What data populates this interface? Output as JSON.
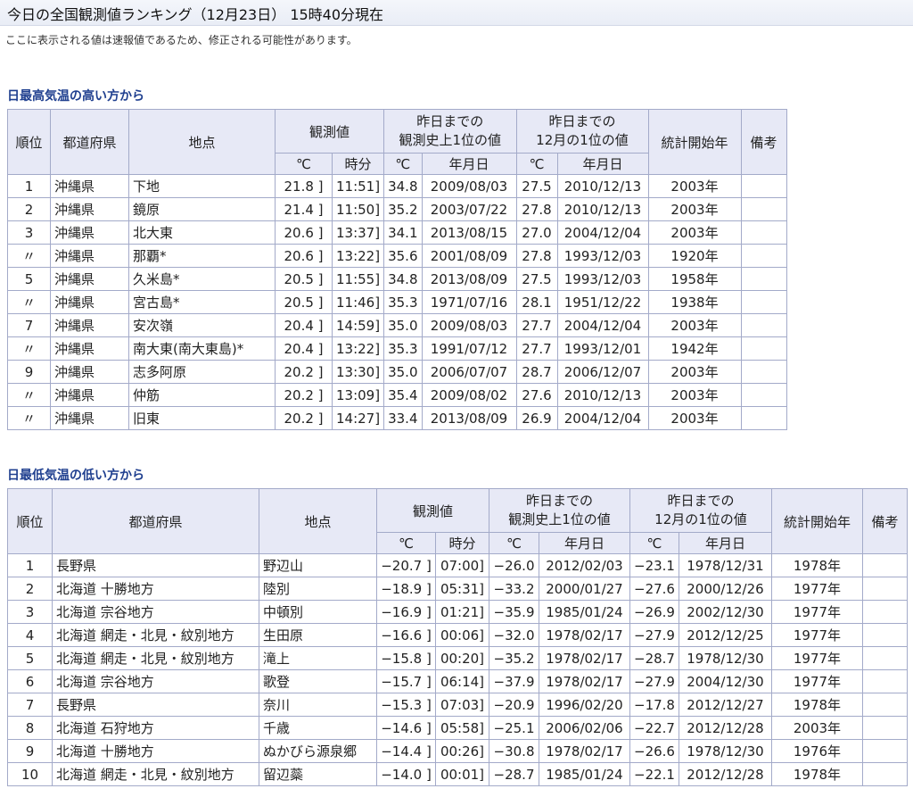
{
  "header": {
    "title": "今日の全国観測値ランキング（12月23日） 15時40分現在",
    "note": "ここに表示される値は速報値であるため、修正される可能性があります。"
  },
  "tables": [
    {
      "caption": "日最高気温の高い方から",
      "head": [
        "順位",
        "都道府県",
        "地点",
        "観測値",
        [
          "昨日までの",
          "観測史上1位の値"
        ],
        [
          "昨日までの",
          "12月の1位の値"
        ],
        "統計開始年",
        "備考"
      ],
      "subhead": [
        "℃",
        "時分",
        "℃",
        "年月日",
        "℃",
        "年月日"
      ],
      "rows": [
        [
          "1",
          "沖縄県",
          "下地",
          "21.8 ]",
          "11:51]",
          "34.8",
          "2009/08/03",
          "27.5",
          "2010/12/13",
          "2003年"
        ],
        [
          "2",
          "沖縄県",
          "鏡原",
          "21.4 ]",
          "11:50]",
          "35.2",
          "2003/07/22",
          "27.8",
          "2010/12/13",
          "2003年"
        ],
        [
          "3",
          "沖縄県",
          "北大東",
          "20.6 ]",
          "13:37]",
          "34.1",
          "2013/08/15",
          "27.0",
          "2004/12/04",
          "2003年"
        ],
        [
          "〃",
          "沖縄県",
          "那覇*",
          "20.6 ]",
          "13:22]",
          "35.6",
          "2001/08/09",
          "27.8",
          "1993/12/03",
          "1920年"
        ],
        [
          "5",
          "沖縄県",
          "久米島*",
          "20.5 ]",
          "11:55]",
          "34.8",
          "2013/08/09",
          "27.5",
          "1993/12/03",
          "1958年"
        ],
        [
          "〃",
          "沖縄県",
          "宮古島*",
          "20.5 ]",
          "11:46]",
          "35.3",
          "1971/07/16",
          "28.1",
          "1951/12/22",
          "1938年"
        ],
        [
          "7",
          "沖縄県",
          "安次嶺",
          "20.4 ]",
          "14:59]",
          "35.0",
          "2009/08/03",
          "27.7",
          "2004/12/04",
          "2003年"
        ],
        [
          "〃",
          "沖縄県",
          "南大東(南大東島)*",
          "20.4 ]",
          "13:22]",
          "35.3",
          "1991/07/12",
          "27.7",
          "1993/12/01",
          "1942年"
        ],
        [
          "9",
          "沖縄県",
          "志多阿原",
          "20.2 ]",
          "13:30]",
          "35.0",
          "2006/07/07",
          "28.7",
          "2006/12/07",
          "2003年"
        ],
        [
          "〃",
          "沖縄県",
          "仲筋",
          "20.2 ]",
          "13:09]",
          "35.4",
          "2009/08/02",
          "27.6",
          "2010/12/13",
          "2003年"
        ],
        [
          "〃",
          "沖縄県",
          "旧東",
          "20.2 ]",
          "14:27]",
          "33.4",
          "2013/08/09",
          "26.9",
          "2004/12/04",
          "2003年"
        ]
      ]
    },
    {
      "caption": "日最低気温の低い方から",
      "head": [
        "順位",
        "都道府県",
        "地点",
        "観測値",
        [
          "昨日までの",
          "観測史上1位の値"
        ],
        [
          "昨日までの",
          "12月の1位の値"
        ],
        "統計開始年",
        "備考"
      ],
      "subhead": [
        "℃",
        "時分",
        "℃",
        "年月日",
        "℃",
        "年月日"
      ],
      "rows": [
        [
          "1",
          "長野県",
          "野辺山",
          "−20.7 ]",
          "07:00]",
          "−26.0",
          "2012/02/03",
          "−23.1",
          "1978/12/31",
          "1978年"
        ],
        [
          "2",
          "北海道 十勝地方",
          "陸別",
          "−18.9 ]",
          "05:31]",
          "−33.2",
          "2000/01/27",
          "−27.6",
          "2000/12/26",
          "1977年"
        ],
        [
          "3",
          "北海道 宗谷地方",
          "中頓別",
          "−16.9 ]",
          "01:21]",
          "−35.9",
          "1985/01/24",
          "−26.9",
          "2002/12/30",
          "1977年"
        ],
        [
          "4",
          "北海道 網走・北見・紋別地方",
          "生田原",
          "−16.6 ]",
          "00:06]",
          "−32.0",
          "1978/02/17",
          "−27.9",
          "2012/12/25",
          "1977年"
        ],
        [
          "5",
          "北海道 網走・北見・紋別地方",
          "滝上",
          "−15.8 ]",
          "00:20]",
          "−35.2",
          "1978/02/17",
          "−28.7",
          "1978/12/30",
          "1977年"
        ],
        [
          "6",
          "北海道 宗谷地方",
          "歌登",
          "−15.7 ]",
          "06:14]",
          "−37.9",
          "1978/02/17",
          "−27.9",
          "2004/12/30",
          "1977年"
        ],
        [
          "7",
          "長野県",
          "奈川",
          "−15.3 ]",
          "07:03]",
          "−20.9",
          "1996/02/20",
          "−17.8",
          "2012/12/27",
          "1978年"
        ],
        [
          "8",
          "北海道 石狩地方",
          "千歳",
          "−14.6 ]",
          "05:58]",
          "−25.1",
          "2006/02/06",
          "−22.7",
          "2012/12/28",
          "2003年"
        ],
        [
          "9",
          "北海道 十勝地方",
          "ぬかびら源泉郷",
          "−14.4 ]",
          "00:26]",
          "−30.8",
          "1978/02/17",
          "−26.6",
          "1978/12/30",
          "1976年"
        ],
        [
          "10",
          "北海道 網走・北見・紋別地方",
          "留辺蘂",
          "−14.0 ]",
          "00:01]",
          "−28.7",
          "1985/01/24",
          "−22.1",
          "2012/12/28",
          "1978年"
        ]
      ]
    }
  ]
}
